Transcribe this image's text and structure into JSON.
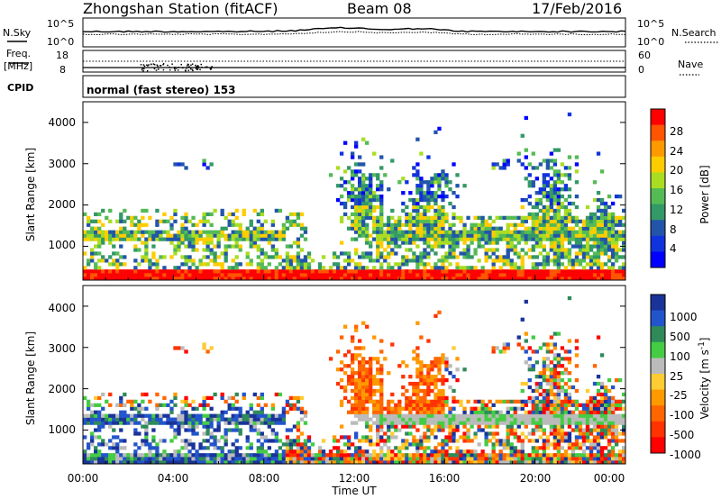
{
  "header": {
    "station": "Zhongshan Station (fitACF)",
    "beam": "Beam 08",
    "date": "17/Feb/2016"
  },
  "strips": {
    "nsky_label": "N.Sky",
    "nsky_ticks": [
      "10^5",
      "10^0"
    ],
    "nsearch_label": "N.Search",
    "nsearch_ticks": [
      "10^5",
      "10^0"
    ],
    "freq_label": "Freq.",
    "freq_unit": "[MHz]",
    "freq_ticks": [
      "18",
      "8"
    ],
    "nave_label": "Nave",
    "nave_ticks": [
      "60",
      "0"
    ],
    "cpid_label": "CPID",
    "cpid_text": "normal (fast stereo) 153"
  },
  "panels": {
    "power": {
      "ylabel": "Slant Range [km]",
      "yticks": [
        "4000",
        "3000",
        "2000",
        "1000"
      ],
      "cbar_label": "Power [dB]",
      "cbar_ticks": [
        "28",
        "24",
        "20",
        "16",
        "12",
        "8",
        "4"
      ],
      "cbar_colors": [
        "#ff0000",
        "#ff5500",
        "#ff9900",
        "#ffcc00",
        "#aadd22",
        "#55bb55",
        "#339966",
        "#2255aa",
        "#1133dd",
        "#0000ff"
      ]
    },
    "velocity": {
      "ylabel": "Slant Range [km]",
      "yticks": [
        "4000",
        "3000",
        "2000",
        "1000"
      ],
      "cbar_label": "Velocity [m s",
      "cbar_label_sup": "-1",
      "cbar_label_end": "]",
      "cbar_ticks": [
        "1000",
        "500",
        "100",
        "25",
        "-25",
        "-100",
        "-500",
        "-1000"
      ],
      "cbar_colors": [
        "#1a3399",
        "#2255cc",
        "#2f8a5a",
        "#44cc44",
        "#bbbbbb",
        "#ffcc33",
        "#ff9900",
        "#ff6600",
        "#ff3300",
        "#ff0000"
      ]
    }
  },
  "xaxis": {
    "ticks": [
      "00:00",
      "04:00",
      "08:00",
      "12:00",
      "16:00",
      "20:00",
      "00:00"
    ],
    "label": "Time UT"
  },
  "chart_data": {
    "type": "heatmap",
    "title": "Zhongshan Station (fitACF)  Beam 08  17/Feb/2016",
    "xlabel": "Time UT",
    "ylabel": "Slant Range [km]",
    "xlim": [
      "00:00",
      "24:00"
    ],
    "ylim": [
      180,
      4500
    ],
    "panels": [
      "Power [dB]",
      "Velocity [m s^-1]"
    ],
    "power_colorbar": [
      4,
      8,
      12,
      16,
      20,
      24,
      28
    ],
    "velocity_colorbar": [
      -1000,
      -500,
      -100,
      -25,
      25,
      100,
      500,
      1000
    ],
    "freq_range_mhz": [
      8,
      18
    ],
    "nave_range": [
      0,
      60
    ]
  }
}
